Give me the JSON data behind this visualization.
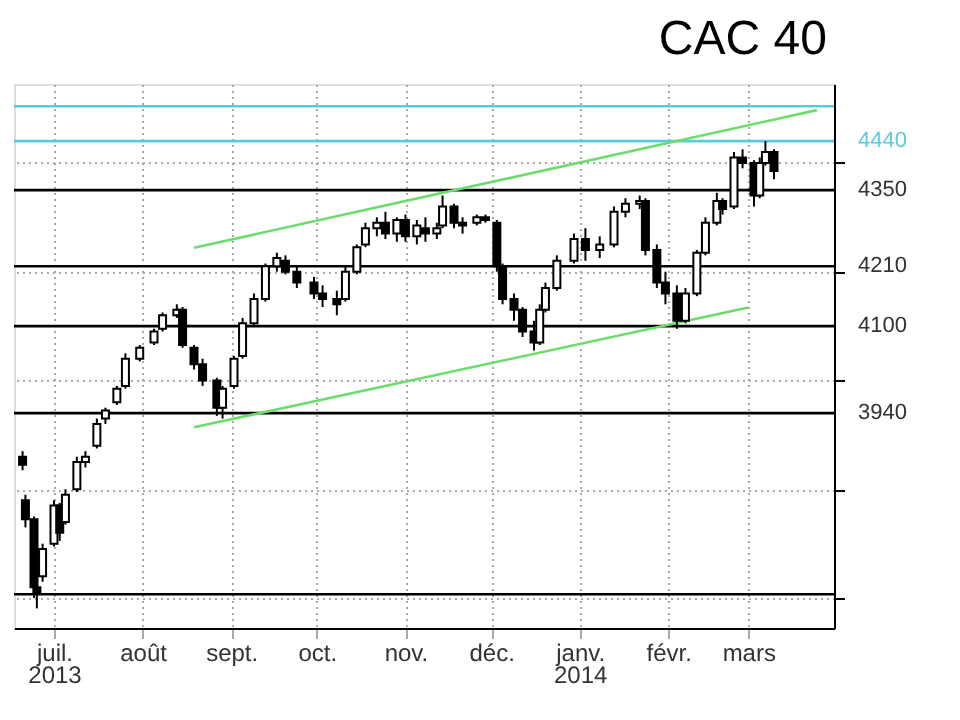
{
  "chart_data": {
    "type": "candlestick",
    "title": "CAC 40",
    "color": "#000000",
    "x": [
      "2013-06-20",
      "2013-06-21",
      "2013-06-24",
      "2013-06-25",
      "2013-06-27",
      "2013-07-01",
      "2013-07-03",
      "2013-07-05",
      "2013-07-09",
      "2013-07-12",
      "2013-07-16",
      "2013-07-19",
      "2013-07-23",
      "2013-07-26",
      "2013-07-31",
      "2013-08-05",
      "2013-08-08",
      "2013-08-13",
      "2013-08-15",
      "2013-08-19",
      "2013-08-22",
      "2013-08-27",
      "2013-08-29",
      "2013-09-02",
      "2013-09-05",
      "2013-09-09",
      "2013-09-13",
      "2013-09-17",
      "2013-09-20",
      "2013-09-24",
      "2013-09-30",
      "2013-10-03",
      "2013-10-08",
      "2013-10-11",
      "2013-10-15",
      "2013-10-18",
      "2013-10-22",
      "2013-10-25",
      "2013-10-29",
      "2013-11-01",
      "2013-11-05",
      "2013-11-08",
      "2013-11-12",
      "2013-11-14",
      "2013-11-18",
      "2013-11-21",
      "2013-11-26",
      "2013-11-29",
      "2013-12-03",
      "2013-12-05",
      "2013-12-09",
      "2013-12-12",
      "2013-12-16",
      "2013-12-18",
      "2013-12-20",
      "2013-12-24",
      "2013-12-30",
      "2014-01-03",
      "2014-01-08",
      "2014-01-13",
      "2014-01-17",
      "2014-01-22",
      "2014-01-24",
      "2014-01-28",
      "2014-01-31",
      "2014-02-04",
      "2014-02-07",
      "2014-02-11",
      "2014-02-14",
      "2014-02-18",
      "2014-02-20",
      "2014-02-24",
      "2014-02-27",
      "2014-03-03",
      "2014-03-05",
      "2014-03-07",
      "2014-03-10"
    ],
    "ohlc": [
      [
        3860,
        3870,
        3835,
        3845
      ],
      [
        3780,
        3790,
        3730,
        3745
      ],
      [
        3745,
        3750,
        3600,
        3620
      ],
      [
        3620,
        3640,
        3581,
        3610
      ],
      [
        3640,
        3700,
        3630,
        3690
      ],
      [
        3700,
        3780,
        3695,
        3770
      ],
      [
        3770,
        3775,
        3705,
        3720
      ],
      [
        3740,
        3800,
        3735,
        3790
      ],
      [
        3800,
        3860,
        3795,
        3850
      ],
      [
        3850,
        3870,
        3840,
        3860
      ],
      [
        3880,
        3930,
        3875,
        3920
      ],
      [
        3930,
        3950,
        3920,
        3945
      ],
      [
        3960,
        3990,
        3955,
        3985
      ],
      [
        3990,
        4050,
        3985,
        4040
      ],
      [
        4040,
        4065,
        4035,
        4060
      ],
      [
        4070,
        4095,
        4065,
        4090
      ],
      [
        4095,
        4125,
        4090,
        4120
      ],
      [
        4120,
        4140,
        4115,
        4130
      ],
      [
        4130,
        4135,
        4060,
        4065
      ],
      [
        4060,
        4065,
        4020,
        4030
      ],
      [
        4030,
        4040,
        3990,
        4000
      ],
      [
        4000,
        4005,
        3935,
        3950
      ],
      [
        3950,
        3990,
        3930,
        3985
      ],
      [
        3990,
        4045,
        3985,
        4040
      ],
      [
        4045,
        4115,
        4040,
        4105
      ],
      [
        4105,
        4160,
        4100,
        4150
      ],
      [
        4150,
        4215,
        4145,
        4210
      ],
      [
        4210,
        4235,
        4200,
        4225
      ],
      [
        4220,
        4230,
        4195,
        4200
      ],
      [
        4200,
        4210,
        4170,
        4180
      ],
      [
        4180,
        4190,
        4150,
        4160
      ],
      [
        4160,
        4175,
        4135,
        4150
      ],
      [
        4150,
        4165,
        4120,
        4140
      ],
      [
        4150,
        4210,
        4145,
        4200
      ],
      [
        4200,
        4250,
        4195,
        4245
      ],
      [
        4250,
        4290,
        4245,
        4280
      ],
      [
        4280,
        4300,
        4265,
        4290
      ],
      [
        4290,
        4310,
        4260,
        4270
      ],
      [
        4270,
        4300,
        4255,
        4295
      ],
      [
        4295,
        4305,
        4255,
        4265
      ],
      [
        4265,
        4295,
        4250,
        4285
      ],
      [
        4280,
        4300,
        4255,
        4270
      ],
      [
        4270,
        4290,
        4260,
        4280
      ],
      [
        4285,
        4340,
        4280,
        4320
      ],
      [
        4320,
        4325,
        4280,
        4290
      ],
      [
        4290,
        4300,
        4270,
        4285
      ],
      [
        4290,
        4305,
        4285,
        4300
      ],
      [
        4300,
        4305,
        4290,
        4295
      ],
      [
        4290,
        4295,
        4200,
        4210
      ],
      [
        4210,
        4215,
        4140,
        4150
      ],
      [
        4150,
        4160,
        4110,
        4130
      ],
      [
        4130,
        4135,
        4080,
        4090
      ],
      [
        4090,
        4110,
        4055,
        4070
      ],
      [
        4070,
        4140,
        4065,
        4130
      ],
      [
        4130,
        4180,
        4125,
        4170
      ],
      [
        4170,
        4230,
        4165,
        4220
      ],
      [
        4220,
        4270,
        4215,
        4260
      ],
      [
        4260,
        4280,
        4220,
        4240
      ],
      [
        4240,
        4265,
        4225,
        4250
      ],
      [
        4250,
        4320,
        4245,
        4310
      ],
      [
        4310,
        4335,
        4300,
        4325
      ],
      [
        4325,
        4340,
        4315,
        4330
      ],
      [
        4330,
        4335,
        4230,
        4240
      ],
      [
        4240,
        4250,
        4170,
        4180
      ],
      [
        4180,
        4200,
        4140,
        4160
      ],
      [
        4160,
        4175,
        4095,
        4110
      ],
      [
        4110,
        4170,
        4105,
        4160
      ],
      [
        4160,
        4240,
        4155,
        4235
      ],
      [
        4235,
        4300,
        4230,
        4290
      ],
      [
        4290,
        4345,
        4285,
        4330
      ],
      [
        4330,
        4335,
        4305,
        4315
      ],
      [
        4320,
        4420,
        4315,
        4410
      ],
      [
        4410,
        4425,
        4390,
        4400
      ],
      [
        4400,
        4405,
        4320,
        4340
      ],
      [
        4340,
        4410,
        4335,
        4400
      ],
      [
        4400,
        4440,
        4395,
        4420
      ],
      [
        4420,
        4425,
        4370,
        4385
      ]
    ],
    "series": [
      {
        "type": "line",
        "color": "#6cdc6c",
        "x": [
          "2013-08-19",
          "2014-03-25"
        ],
        "values": [
          4244,
          4497
        ]
      },
      {
        "type": "line",
        "color": "#6cdc6c",
        "x": [
          "2013-08-19",
          "2014-03-01"
        ],
        "values": [
          3914,
          4134
        ]
      }
    ],
    "xlim": [
      "2013-06-17",
      "2014-03-31"
    ],
    "xticks": [
      {
        "value": "2013-07-01",
        "label": "juil. 2013"
      },
      {
        "value": "2013-08-01",
        "label": "août"
      },
      {
        "value": "2013-09-01",
        "label": "sept."
      },
      {
        "value": "2013-10-01",
        "label": "oct."
      },
      {
        "value": "2013-11-01",
        "label": "nov."
      },
      {
        "value": "2013-12-01",
        "label": "déc."
      },
      {
        "value": "2014-01-01",
        "label": "janv. 2014"
      },
      {
        "value": "2014-02-01",
        "label": "févr."
      },
      {
        "value": "2014-03-01",
        "label": "mars"
      }
    ],
    "ylim": [
      3545,
      4545
    ],
    "yticks": [
      {
        "value": 3600,
        "label": null
      },
      {
        "value": 3800,
        "label": null
      },
      {
        "value": 4000,
        "label": null
      },
      {
        "value": 4200,
        "label": null
      },
      {
        "value": 4400,
        "label": null
      }
    ],
    "grid": true,
    "tick_labels": "x",
    "ref_lines": [
      {
        "axis": "y",
        "value": 4504,
        "color": "#5ccbd9"
      },
      {
        "axis": "y",
        "value": 4440,
        "label": "4440",
        "color": "#5ccbd9"
      },
      {
        "axis": "y",
        "value": 4350,
        "label": "4350",
        "color": "#000000"
      },
      {
        "axis": "y",
        "value": 4210,
        "label": "4210",
        "color": "#000000"
      },
      {
        "axis": "y",
        "value": 4100,
        "label": "4100",
        "color": "#000000"
      },
      {
        "axis": "y",
        "value": 3940,
        "label": "3940",
        "color": "#000000"
      },
      {
        "axis": "y",
        "value": 3607,
        "color": "#000000"
      }
    ]
  }
}
